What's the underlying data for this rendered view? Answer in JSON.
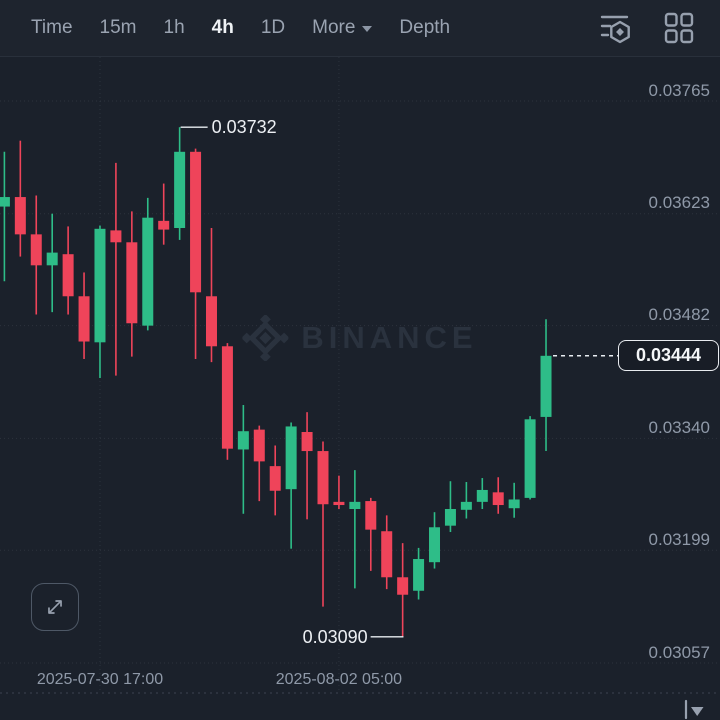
{
  "toolbar": {
    "items": [
      {
        "label": "Time",
        "active": false
      },
      {
        "label": "15m",
        "active": false
      },
      {
        "label": "1h",
        "active": false
      },
      {
        "label": "4h",
        "active": true
      },
      {
        "label": "1D",
        "active": false
      },
      {
        "label": "More",
        "active": false,
        "has_caret": true
      },
      {
        "label": "Depth",
        "active": false
      }
    ],
    "icons": [
      "indicators-icon",
      "layout-grid-icon"
    ]
  },
  "watermark": {
    "text": "BINANCE"
  },
  "chart_data": {
    "type": "candlestick",
    "interval": "4h",
    "colors": {
      "up": "#2EBD88",
      "down": "#EF445A"
    },
    "y_axis": {
      "ticks": [
        "0.03765",
        "0.03623",
        "0.03482",
        "0.03340",
        "0.03199",
        "0.03057"
      ]
    },
    "x_axis": {
      "labels": [
        {
          "text": "2025-07-30 17:00",
          "candle_index": 6
        },
        {
          "text": "2025-08-02 05:00",
          "candle_index": 21
        }
      ]
    },
    "markers": {
      "high": {
        "label": "0.03732",
        "price": 0.03732,
        "candle_index": 11
      },
      "low": {
        "label": "0.03090",
        "price": 0.0309,
        "candle_index": 25
      }
    },
    "last_price": {
      "label": "0.03444",
      "price": 0.03444
    },
    "candles": [
      {
        "o": 0.03632,
        "h": 0.03701,
        "l": 0.03538,
        "c": 0.03644
      },
      {
        "o": 0.03644,
        "h": 0.03715,
        "l": 0.03569,
        "c": 0.03597
      },
      {
        "o": 0.03597,
        "h": 0.03646,
        "l": 0.03496,
        "c": 0.03558
      },
      {
        "o": 0.03558,
        "h": 0.03623,
        "l": 0.03499,
        "c": 0.03574
      },
      {
        "o": 0.03572,
        "h": 0.03607,
        "l": 0.03496,
        "c": 0.03519
      },
      {
        "o": 0.03519,
        "h": 0.03549,
        "l": 0.0344,
        "c": 0.03462
      },
      {
        "o": 0.03461,
        "h": 0.03608,
        "l": 0.03416,
        "c": 0.03604
      },
      {
        "o": 0.03602,
        "h": 0.03687,
        "l": 0.03419,
        "c": 0.03587
      },
      {
        "o": 0.03587,
        "h": 0.03626,
        "l": 0.03443,
        "c": 0.03485
      },
      {
        "o": 0.03482,
        "h": 0.03643,
        "l": 0.03476,
        "c": 0.03618
      },
      {
        "o": 0.03614,
        "h": 0.03661,
        "l": 0.03584,
        "c": 0.03603
      },
      {
        "o": 0.03605,
        "h": 0.03732,
        "l": 0.0359,
        "c": 0.03701
      },
      {
        "o": 0.03701,
        "h": 0.03705,
        "l": 0.0344,
        "c": 0.03524
      },
      {
        "o": 0.03519,
        "h": 0.03605,
        "l": 0.03436,
        "c": 0.03456
      },
      {
        "o": 0.03456,
        "h": 0.0346,
        "l": 0.03313,
        "c": 0.03327
      },
      {
        "o": 0.03326,
        "h": 0.03382,
        "l": 0.03245,
        "c": 0.03349
      },
      {
        "o": 0.03351,
        "h": 0.03356,
        "l": 0.03261,
        "c": 0.03311
      },
      {
        "o": 0.03305,
        "h": 0.03331,
        "l": 0.03243,
        "c": 0.03274
      },
      {
        "o": 0.03276,
        "h": 0.0336,
        "l": 0.03201,
        "c": 0.03355
      },
      {
        "o": 0.03348,
        "h": 0.03373,
        "l": 0.03238,
        "c": 0.03324
      },
      {
        "o": 0.03324,
        "h": 0.03336,
        "l": 0.03128,
        "c": 0.03257
      },
      {
        "o": 0.0326,
        "h": 0.03293,
        "l": 0.03251,
        "c": 0.03256
      },
      {
        "o": 0.03251,
        "h": 0.033,
        "l": 0.03151,
        "c": 0.0326
      },
      {
        "o": 0.03261,
        "h": 0.03265,
        "l": 0.03173,
        "c": 0.03225
      },
      {
        "o": 0.03223,
        "h": 0.03243,
        "l": 0.0315,
        "c": 0.03165
      },
      {
        "o": 0.03165,
        "h": 0.03208,
        "l": 0.0309,
        "c": 0.03143
      },
      {
        "o": 0.03148,
        "h": 0.03202,
        "l": 0.03137,
        "c": 0.03188
      },
      {
        "o": 0.03184,
        "h": 0.03247,
        "l": 0.03176,
        "c": 0.03228
      },
      {
        "o": 0.0323,
        "h": 0.03286,
        "l": 0.03222,
        "c": 0.03251
      },
      {
        "o": 0.0325,
        "h": 0.03285,
        "l": 0.03239,
        "c": 0.0326
      },
      {
        "o": 0.0326,
        "h": 0.0329,
        "l": 0.03251,
        "c": 0.03275
      },
      {
        "o": 0.03272,
        "h": 0.03291,
        "l": 0.03245,
        "c": 0.03256
      },
      {
        "o": 0.03252,
        "h": 0.03284,
        "l": 0.0324,
        "c": 0.03263
      },
      {
        "o": 0.03265,
        "h": 0.03368,
        "l": 0.03263,
        "c": 0.03364
      },
      {
        "o": 0.03367,
        "h": 0.0349,
        "l": 0.03324,
        "c": 0.03444
      }
    ]
  }
}
